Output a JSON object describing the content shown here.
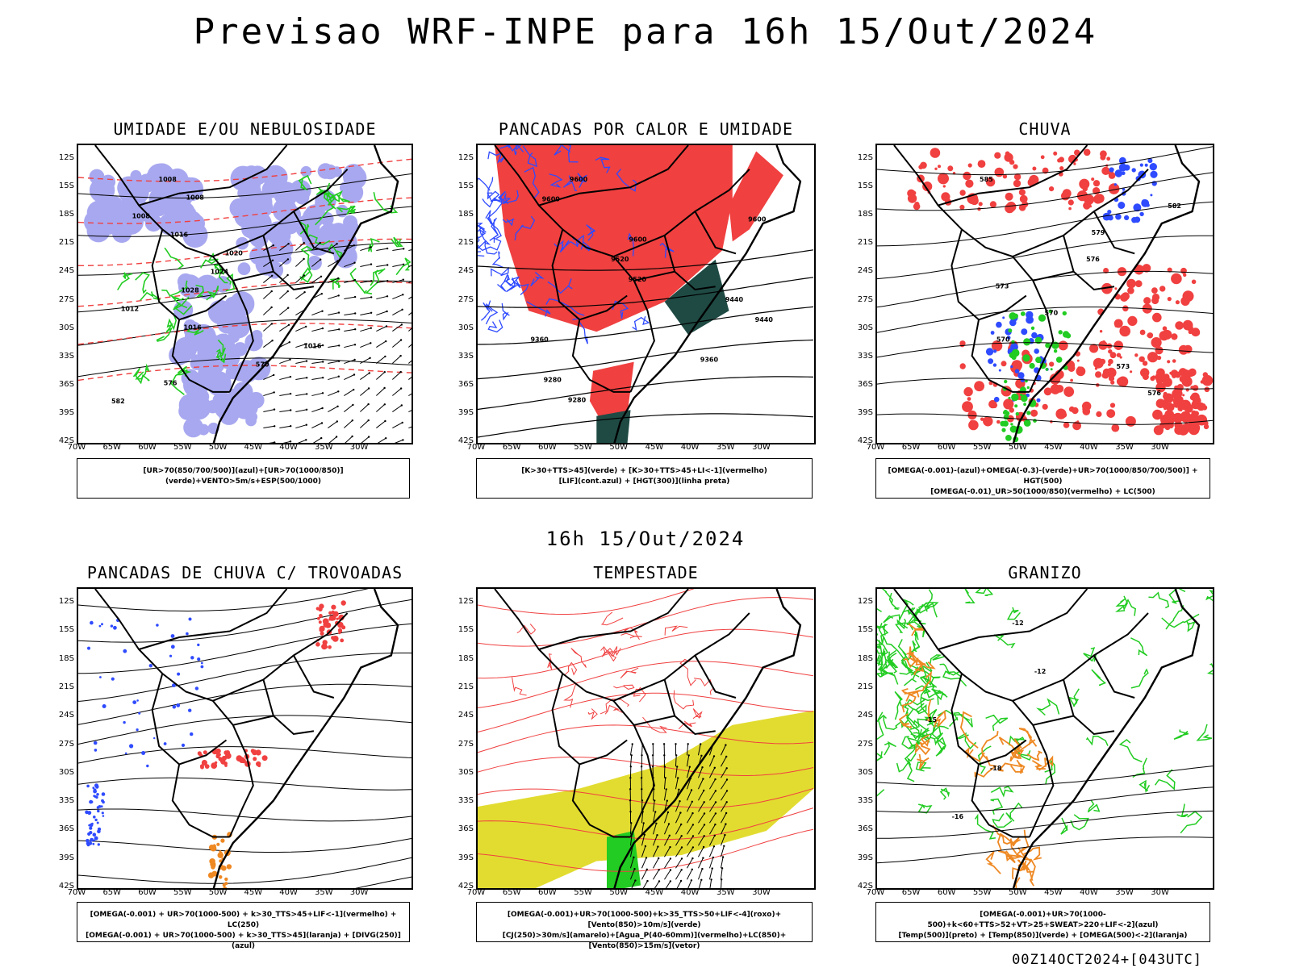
{
  "title": "Previsao WRF-INPE  para 16h 15/Out/2024",
  "mid_title": "16h 15/Out/2024",
  "footer": "00Z14OCT2024+[043UTC]",
  "lat_labels": [
    "12S",
    "15S",
    "18S",
    "21S",
    "24S",
    "27S",
    "30S",
    "33S",
    "36S",
    "39S",
    "42S"
  ],
  "lon_labels": [
    "70W",
    "65W",
    "60W",
    "55W",
    "50W",
    "45W",
    "40W",
    "35W",
    "30W"
  ],
  "panels": [
    {
      "title": "UMIDADE E/OU NEBULOSIDADE",
      "legend": [
        "[UR>70(850/700/500)](azul)+[UR>70(1000/850)](verde)+VENTO>5m/s+ESP(500/1000)"
      ],
      "contour_labels": [
        "1008",
        "1008",
        "1008",
        "1016",
        "1020",
        "1024",
        "1028",
        "1012",
        "1016",
        "1016",
        "570",
        "576",
        "582"
      ]
    },
    {
      "title": "PANCADAS POR CALOR E UMIDADE",
      "legend": [
        "[K>30+TTS>45](verde) + [K>30+TTS>45+LI<-1](vermelho)",
        "[LIF](cont.azul) + [HGT(300)](linha preta)"
      ],
      "contour_labels": [
        "9600",
        "9600",
        "9600",
        "9600",
        "9520",
        "9520",
        "9440",
        "9440",
        "9360",
        "9360",
        "9280",
        "9280"
      ]
    },
    {
      "title": "CHUVA",
      "legend": [
        "[OMEGA(-0.001)-(azul)+OMEGA(-0.3)-(verde)+UR>70(1000/850/700/500)] + HGT(500)",
        "[OMEGA(-0.01)_UR>50(1000/850)(vermelho) + LC(500)"
      ],
      "contour_labels": [
        "585",
        "582",
        "579",
        "576",
        "573",
        "570",
        "570",
        "573",
        "576"
      ]
    },
    {
      "title": "PANCADAS DE CHUVA C/ TROVOADAS",
      "legend": [
        "[OMEGA(-0.001) + UR>70(1000-500) + k>30_TTS>45+LIF<-1](vermelho) + LC(250)",
        "[OMEGA(-0.001) + UR>70(1000-500) + k>30_TTS>45](laranja) + [DIVG(250)](azul)"
      ],
      "contour_labels": []
    },
    {
      "title": "TEMPESTADE",
      "legend": [
        "[OMEGA(-0.001)+UR>70(1000-500)+k>35_TTS>50+LIF<-4](roxo)+[Vento(850)>10m/s](verde)",
        "[CJ(250)>30m/s](amarelo)+[Agua_P(40-60mm)](vermelho)+LC(850)+[Vento(850)>15m/s](vetor)"
      ],
      "contour_labels": []
    },
    {
      "title": "GRANIZO",
      "legend": [
        "[OMEGA(-0.001)+UR>70(1000-500)+k<60+TTS>52+VT>25+SWEAT>220+LIF<-2](azul)",
        "[Temp(500)](preto) + [Temp(850)](verde) + [OMEGA(500)<-2](laranja)"
      ],
      "contour_labels": [
        "-12",
        "-12",
        "-15",
        "-18",
        "-16"
      ]
    }
  ],
  "colors": {
    "blue": "#2f4bff",
    "green": "#22cc22",
    "red": "#f04040",
    "lavender": "#a8a8f0",
    "darkgreen": "#1f4a44",
    "yellow": "#e2dc30",
    "orange": "#ee8822"
  }
}
